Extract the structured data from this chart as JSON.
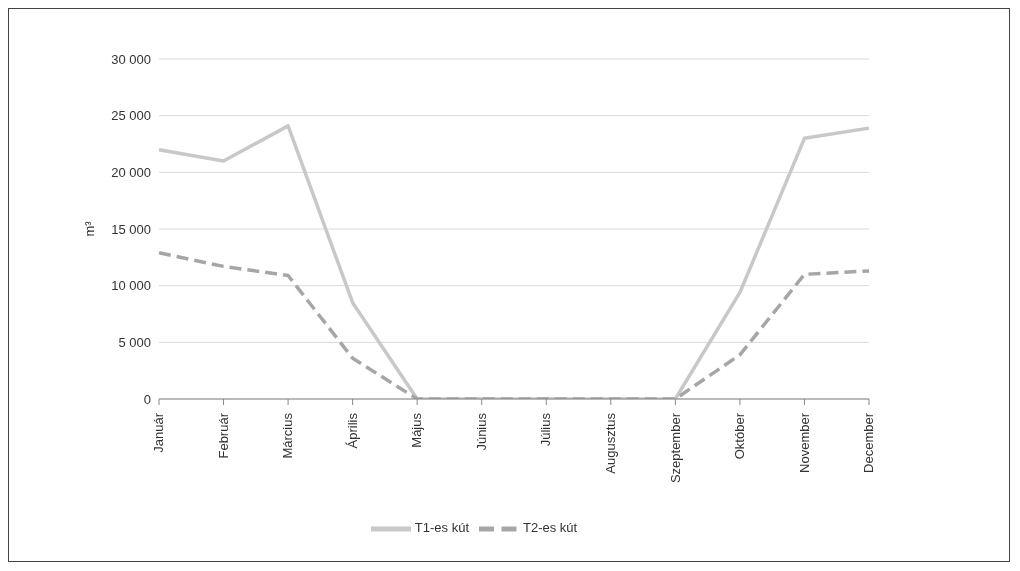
{
  "chart_data": {
    "type": "line",
    "ylabel": "m³",
    "categories": [
      "Január",
      "Február",
      "Március",
      "Április",
      "Május",
      "Június",
      "Július",
      "Augusztus",
      "Szeptember",
      "Október",
      "November",
      "December"
    ],
    "series": [
      {
        "name": "T1-es kút",
        "color": "#c8c8c8",
        "line_style": "solid",
        "values": [
          22000,
          21000,
          24100,
          8500,
          0,
          0,
          0,
          0,
          0,
          9400,
          23000,
          23900
        ]
      },
      {
        "name": "T2-es kút",
        "color": "#a6a6a6",
        "line_style": "dashed",
        "values": [
          12900,
          11700,
          10900,
          3600,
          0,
          0,
          0,
          0,
          0,
          3900,
          11000,
          11300
        ]
      }
    ],
    "ylim": [
      0,
      30000
    ],
    "yticks": [
      0,
      {
        "value": 5000,
        "label": "5 000"
      },
      {
        "value": 10000,
        "label": "10 000"
      },
      {
        "value": 15000,
        "label": "15 000"
      },
      {
        "value": 20000,
        "label": "20 000"
      },
      {
        "value": 25000,
        "label": "25 000"
      },
      {
        "value": 30000,
        "label": "30 000"
      }
    ],
    "grid": "y",
    "legend": "bottom",
    "marker": "none"
  }
}
